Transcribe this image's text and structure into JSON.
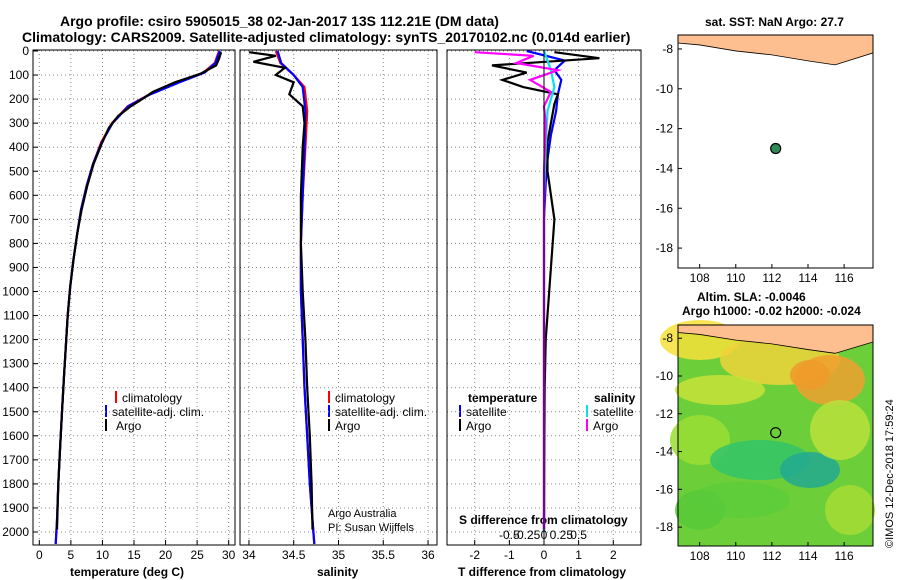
{
  "header": {
    "line1": "Argo profile: csiro 5905015_38 02-Jan-2017 13S 112.21E (DM data)",
    "line2": "Climatology: CARS2009. Satellite-adjusted climatology: synTS_20170102.nc (0.014d earlier)"
  },
  "colors": {
    "climatology": "#ff0000",
    "satellite": "#0000ff",
    "argo": "#000000",
    "sat_salinity": "#00e5ee",
    "argo_salinity": "#ff00ff",
    "land": "#fdbf8f"
  },
  "depth_ticks": [
    "0",
    "100",
    "200",
    "300",
    "400",
    "500",
    "600",
    "700",
    "800",
    "900",
    "1000",
    "1100",
    "1200",
    "1300",
    "1400",
    "1500",
    "1600",
    "1700",
    "1800",
    "1900",
    "2000"
  ],
  "temp_panel": {
    "xlabel": "temperature (deg C)",
    "xticks": [
      "0",
      "5",
      "10",
      "15",
      "20",
      "25",
      "30"
    ],
    "legend": [
      "climatology",
      "satellite-adj. clim.",
      "Argo"
    ]
  },
  "sal_panel": {
    "xlabel": "salinity",
    "xticks": [
      "34",
      "34.5",
      "35",
      "35.5",
      "36"
    ],
    "legend": [
      "climatology",
      "satellite-adj. clim.",
      "Argo"
    ],
    "note1": "Argo Australia",
    "note2": "PI: Susan Wijffels"
  },
  "diff_panel": {
    "xlabel": "T difference from climatology",
    "xticks": [
      "-2",
      "-1",
      "0",
      "1",
      "2"
    ],
    "s_title": "S difference from climatology",
    "s_ticks": [
      "-0.5",
      "-0.25",
      "0",
      "0.25",
      "0.5"
    ],
    "leg_temperature": "temperature",
    "leg_salinity": "salinity",
    "leg_items": [
      "satellite",
      "Argo"
    ]
  },
  "map_sst": {
    "title": "sat. SST: NaN Argo: 27.7",
    "yticks": [
      "-8",
      "-10",
      "-12",
      "-14",
      "-16",
      "-18"
    ],
    "xticks": [
      "108",
      "110",
      "112",
      "114",
      "116"
    ]
  },
  "map_sla": {
    "title1": "Altim. SLA: -0.0046",
    "title2": "Argo h1000: -0.02 h2000: -0.024",
    "yticks": [
      "-8",
      "-10",
      "-12",
      "-14",
      "-16",
      "-18"
    ],
    "xticks": [
      "108",
      "110",
      "112",
      "114",
      "116"
    ]
  },
  "credit": "©IMOS 12-Dec-2018 17:59:24",
  "chart_data": [
    {
      "type": "line",
      "title": "",
      "xlabel": "temperature (deg C)",
      "ylabel": "",
      "xlim": [
        -1,
        31
      ],
      "ylim": [
        2050,
        0
      ],
      "series": [
        {
          "name": "climatology",
          "x": [
            28.5,
            28.2,
            27.8,
            26,
            22,
            17.5,
            14,
            11.5,
            9.8,
            8.5,
            7.5,
            6.6,
            6,
            5.4,
            4.9,
            4.5,
            4.2,
            3.9,
            3.6,
            3.3,
            3.0,
            2.8,
            2.6
          ],
          "y": [
            0,
            20,
            50,
            90,
            130,
            180,
            230,
            300,
            380,
            470,
            560,
            660,
            760,
            870,
            980,
            1100,
            1230,
            1360,
            1500,
            1650,
            1800,
            1950,
            2050
          ]
        },
        {
          "name": "satellite-adj. clim.",
          "x": [
            28.6,
            28.3,
            27.9,
            26.2,
            22.2,
            17.6,
            14.1,
            11.6,
            9.9,
            8.5,
            7.5,
            6.6,
            6,
            5.4,
            4.9,
            4.5,
            4.2,
            3.9,
            3.6,
            3.3,
            3.0,
            2.8,
            2.6
          ],
          "y": [
            0,
            20,
            50,
            90,
            130,
            180,
            230,
            300,
            380,
            470,
            560,
            660,
            760,
            870,
            980,
            1100,
            1230,
            1360,
            1500,
            1650,
            1800,
            1950,
            2050
          ]
        },
        {
          "name": "Argo",
          "x": [
            28.8,
            28.5,
            28.0,
            25.5,
            21.5,
            18.0,
            16.0,
            14.5,
            12.5,
            11.0,
            9.8,
            8.6,
            7.6,
            6.7,
            6.0,
            5.4,
            4.9,
            4.5,
            4.2,
            3.9,
            3.6,
            3.3,
            3.0,
            2.8
          ],
          "y": [
            5,
            30,
            60,
            95,
            130,
            170,
            205,
            230,
            270,
            320,
            390,
            470,
            560,
            660,
            760,
            870,
            980,
            1100,
            1230,
            1360,
            1500,
            1650,
            1800,
            1990
          ]
        }
      ]
    },
    {
      "type": "line",
      "title": "",
      "xlabel": "salinity",
      "ylabel": "",
      "xlim": [
        33.9,
        36.1
      ],
      "ylim": [
        2050,
        0
      ],
      "series": [
        {
          "name": "climatology",
          "x": [
            34.3,
            34.35,
            34.5,
            34.62,
            34.65,
            34.63,
            34.6,
            34.58,
            34.58,
            34.6,
            34.62,
            34.65,
            34.68,
            34.7,
            34.72,
            34.73
          ],
          "y": [
            0,
            50,
            100,
            150,
            250,
            400,
            600,
            800,
            1000,
            1200,
            1400,
            1600,
            1800,
            1900,
            2000,
            2050
          ]
        },
        {
          "name": "satellite-adj. clim.",
          "x": [
            34.32,
            34.36,
            34.5,
            34.6,
            34.63,
            34.62,
            34.6,
            34.58,
            34.58,
            34.6,
            34.62,
            34.65,
            34.68,
            34.7,
            34.72,
            34.73
          ],
          "y": [
            0,
            50,
            100,
            150,
            250,
            400,
            600,
            800,
            1000,
            1200,
            1400,
            1600,
            1800,
            1900,
            2000,
            2050
          ]
        },
        {
          "name": "Argo",
          "x": [
            34.0,
            34.3,
            34.05,
            34.4,
            34.3,
            34.5,
            34.45,
            34.6,
            34.62,
            34.6,
            34.58,
            34.58,
            34.6,
            34.63,
            34.65,
            34.68,
            34.7,
            34.71
          ],
          "y": [
            5,
            20,
            45,
            70,
            100,
            130,
            180,
            230,
            300,
            400,
            600,
            800,
            1000,
            1200,
            1400,
            1600,
            1800,
            1990
          ]
        }
      ]
    },
    {
      "type": "line",
      "title": "",
      "xlabel": "T difference from climatology",
      "ylabel": "",
      "xlim": [
        -2.8,
        2.8
      ],
      "ylim": [
        2050,
        0
      ],
      "series": [
        {
          "name": "temperature satellite",
          "x": [
            -0.5,
            0.6,
            0.3,
            0.5,
            0.4,
            0.35,
            0.2,
            0.1,
            0.05,
            0,
            0,
            0,
            0,
            0,
            0,
            0,
            0
          ],
          "y": [
            0,
            40,
            80,
            120,
            180,
            250,
            350,
            450,
            550,
            700,
            900,
            1100,
            1300,
            1500,
            1700,
            1900,
            2000
          ]
        },
        {
          "name": "temperature Argo",
          "x": [
            0.3,
            1.6,
            -1.5,
            -0.5,
            -1.2,
            -0.6,
            0.4,
            0.3,
            0.2,
            0.1,
            0.1,
            0.3,
            0.15,
            0.05,
            0.02,
            0.01,
            0
          ],
          "y": [
            5,
            30,
            60,
            90,
            120,
            150,
            180,
            220,
            300,
            380,
            500,
            700,
            1000,
            1200,
            1400,
            1700,
            1990
          ]
        },
        {
          "name": "salinity satellite",
          "x": [
            0.0,
            0.1,
            0.2,
            0.3,
            0.1,
            0.05,
            0,
            0,
            0,
            0,
            0,
            0
          ],
          "y": [
            0,
            40,
            80,
            150,
            250,
            400,
            600,
            900,
            1200,
            1500,
            1800,
            2000
          ]
        },
        {
          "name": "salinity Argo",
          "x": [
            -2.0,
            -0.3,
            -0.8,
            0.4,
            -0.4,
            0.2,
            0,
            0.05,
            0,
            0,
            0,
            0,
            0
          ],
          "y": [
            5,
            20,
            50,
            80,
            120,
            170,
            230,
            300,
            500,
            800,
            1200,
            1600,
            1990
          ]
        }
      ]
    },
    {
      "type": "scatter",
      "title": "sat. SST: NaN Argo: 27.7",
      "xlim": [
        106.8,
        117.6
      ],
      "ylim": [
        -19,
        -7.3
      ],
      "points": [
        {
          "lon": 112.21,
          "lat": -13
        }
      ]
    },
    {
      "type": "heatmap",
      "title": "Altim. SLA: -0.0046",
      "xlim": [
        106.8,
        117.6
      ],
      "ylim": [
        -19,
        -7.3
      ],
      "points": [
        {
          "lon": 112.21,
          "lat": -13
        }
      ]
    }
  ]
}
